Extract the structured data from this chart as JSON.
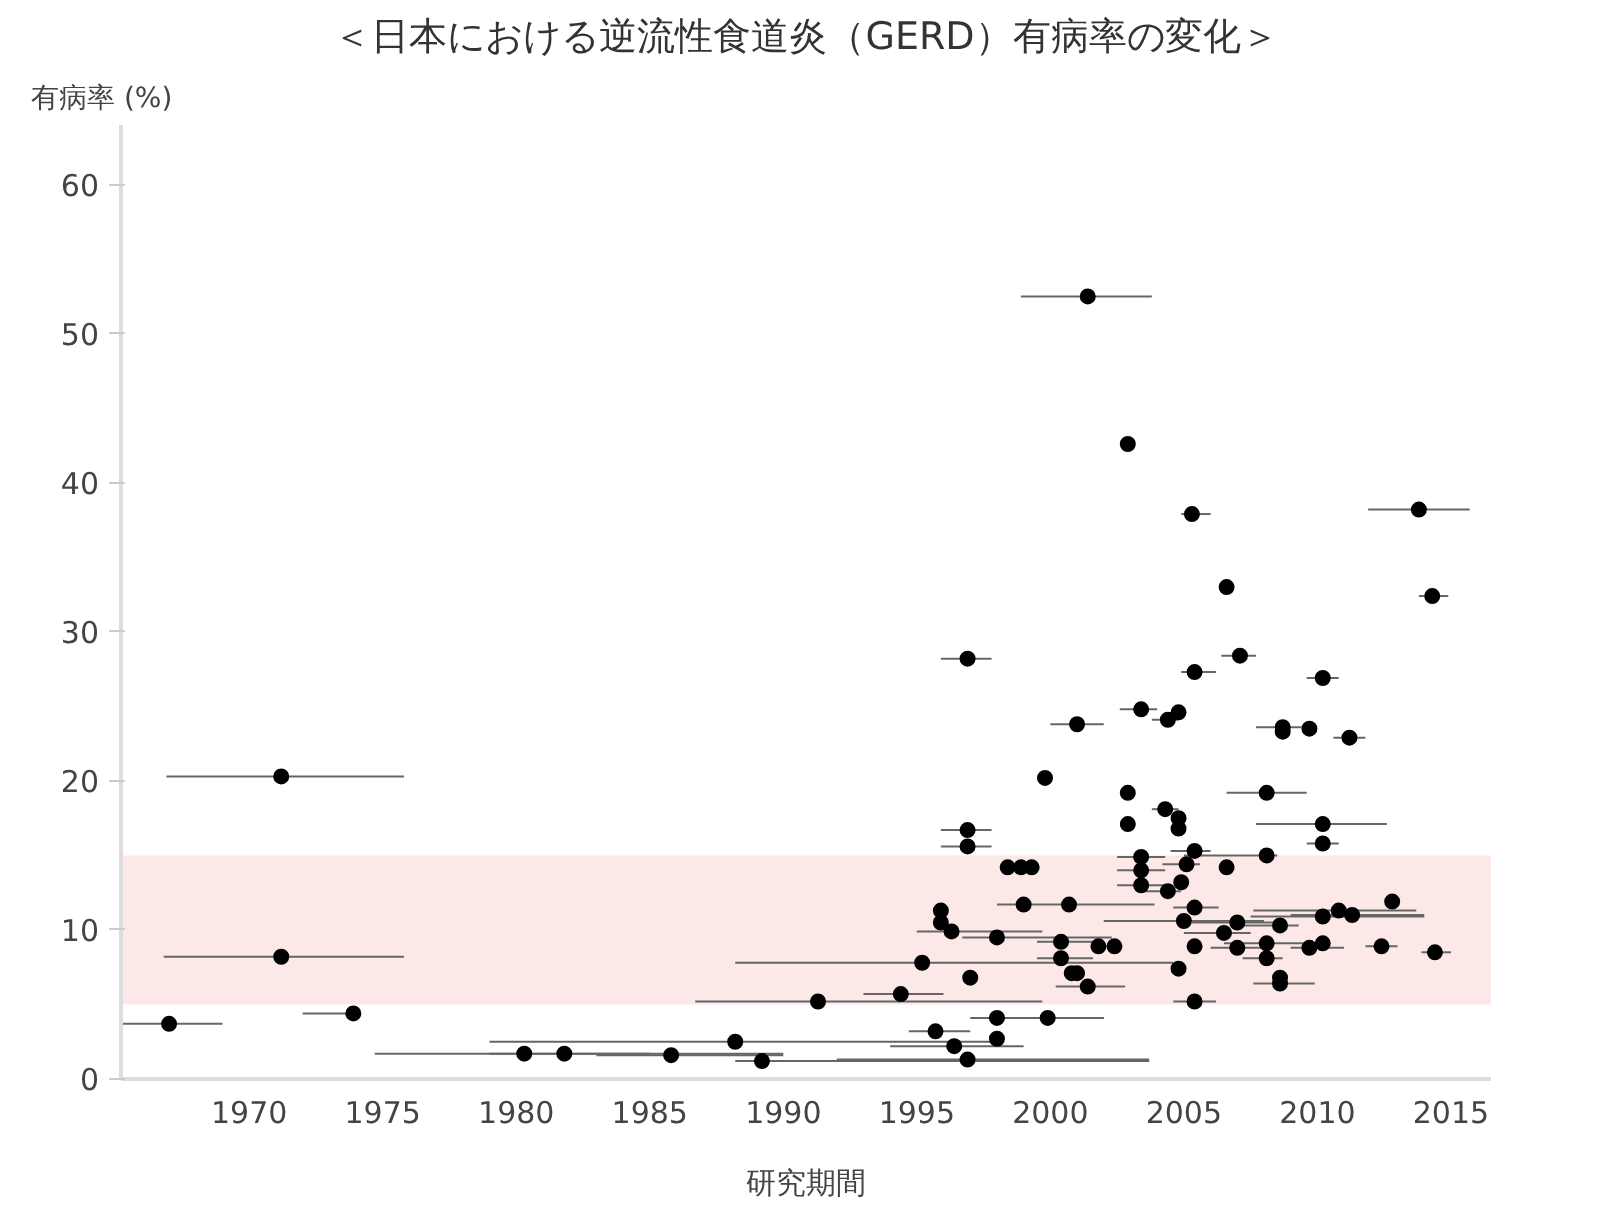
{
  "chart_data": {
    "type": "scatter",
    "title": "＜日本における逆流性食道炎（GERD）有病率の変化＞",
    "xlabel": "研究期間",
    "ylabel": "有病率 (%)",
    "xlim": [
      1965.2,
      2016.5
    ],
    "ylim": [
      0,
      64
    ],
    "xticks": [
      1970,
      1975,
      1980,
      1985,
      1990,
      1995,
      2000,
      2005,
      2010,
      2015
    ],
    "yticks": [
      0,
      10,
      20,
      30,
      40,
      50,
      60
    ],
    "grid": false,
    "marker": "circle",
    "bands": [
      {
        "axis": "y",
        "from": 5,
        "to": 15,
        "color": "#fde8e8"
      }
    ],
    "series": [
      {
        "color": "#000000",
        "x": [
          1967.0,
          1971.2,
          1971.2,
          1973.9,
          1980.3,
          1981.8,
          1985.8,
          1988.2,
          1989.2,
          1991.3,
          1994.4,
          1995.2,
          1995.9,
          1995.9,
          1996.3,
          1995.7,
          1996.4,
          1996.9,
          1996.9,
          1996.9,
          1996.9,
          1997.0,
          1998.0,
          1998.0,
          1998.0,
          1998.4,
          1998.9,
          1999.3,
          1999.0,
          2000.7,
          1999.8,
          1999.9,
          2000.4,
          2000.4,
          2000.8,
          2001.0,
          2001.4,
          2001.0,
          2001.4,
          2001.8,
          2002.4,
          2002.9,
          2002.9,
          2002.9,
          2003.4,
          2003.4,
          2003.4,
          2003.4,
          2004.4,
          2004.3,
          2004.8,
          2004.8,
          2004.8,
          2005.4,
          2005.1,
          2004.9,
          2004.4,
          2006.6,
          2005.4,
          2005.0,
          2005.4,
          2004.8,
          2005.4,
          2007.0,
          2006.5,
          2007.0,
          2005.3,
          2013.8,
          2006.6,
          2014.3,
          2007.1,
          2005.4,
          2010.2,
          2008.7,
          2008.7,
          2009.7,
          2011.2,
          2008.1,
          2010.2,
          2010.2,
          2008.1,
          2012.8,
          2010.8,
          2011.3,
          2010.2,
          2008.6,
          2008.1,
          2009.7,
          2010.2,
          2012.4,
          2014.4,
          2008.1,
          2008.6,
          2008.6
        ],
        "values": [
          3.7,
          20.3,
          8.2,
          4.4,
          1.7,
          1.7,
          1.6,
          2.5,
          1.2,
          5.2,
          5.7,
          7.8,
          11.3,
          10.5,
          9.9,
          3.2,
          2.2,
          1.3,
          28.2,
          16.7,
          15.6,
          6.8,
          9.5,
          4.1,
          2.7,
          14.2,
          14.2,
          14.2,
          11.7,
          11.7,
          20.2,
          4.1,
          9.2,
          8.1,
          7.1,
          7.1,
          6.2,
          23.8,
          52.5,
          8.9,
          8.9,
          42.6,
          19.2,
          17.1,
          24.8,
          14.9,
          14.0,
          13.0,
          24.1,
          18.1,
          24.6,
          17.5,
          16.8,
          15.3,
          14.4,
          13.2,
          12.6,
          14.2,
          11.5,
          10.6,
          8.9,
          7.4,
          5.2,
          10.5,
          9.8,
          8.8,
          37.9,
          38.2,
          33.0,
          32.4,
          28.4,
          27.3,
          26.9,
          23.6,
          23.3,
          23.5,
          22.9,
          19.2,
          17.1,
          15.8,
          15.0,
          11.9,
          11.3,
          11.0,
          10.9,
          10.3,
          9.1,
          8.8,
          9.1,
          8.9,
          8.5,
          8.1,
          6.8,
          6.4
        ],
        "xerrors": [
          [
            1965.2,
            1969.0
          ],
          [
            1966.9,
            1975.8
          ],
          [
            1966.8,
            1975.8
          ],
          [
            1972.0,
            1973.9
          ],
          [
            1974.7,
            1985.0
          ],
          [
            1979.0,
            1990.0
          ],
          [
            1983.0,
            1990.0
          ],
          [
            1979.0,
            1998.0
          ],
          [
            1988.2,
            2003.7
          ],
          [
            1986.7,
            1999.7
          ],
          [
            1993.0,
            1996.0
          ],
          [
            1988.2,
            2004.6
          ],
          null,
          null,
          [
            1995.0,
            1999.7
          ],
          [
            1994.7,
            1997.0
          ],
          [
            1994.0,
            1999.0
          ],
          [
            1992.0,
            2003.7
          ],
          [
            1995.9,
            1997.8
          ],
          [
            1995.9,
            1997.8
          ],
          [
            1995.9,
            1997.8
          ],
          null,
          [
            1996.7,
            2002.3
          ],
          [
            1997.0,
            2002.0
          ],
          null,
          null,
          null,
          null,
          [
            1998.0,
            2003.9
          ],
          null,
          null,
          [
            1999.9,
            2002.0
          ],
          [
            1999.5,
            2001.6
          ],
          [
            1999.5,
            2001.6
          ],
          null,
          null,
          [
            2000.2,
            2002.8
          ],
          [
            2000.0,
            2002.0
          ],
          [
            1998.9,
            2003.8
          ],
          null,
          null,
          null,
          null,
          null,
          [
            2002.6,
            2004.0
          ],
          [
            2002.5,
            2004.3
          ],
          [
            2002.5,
            2004.3
          ],
          [
            2002.5,
            2004.3
          ],
          [
            2003.8,
            2004.8
          ],
          [
            2003.8,
            2004.8
          ],
          null,
          null,
          null,
          [
            2004.5,
            2006.0
          ],
          [
            2004.2,
            2005.6
          ],
          null,
          [
            2003.5,
            2004.9
          ],
          null,
          [
            2004.6,
            2006.3
          ],
          [
            2002.0,
            2008.0
          ],
          null,
          null,
          [
            2004.6,
            2006.2
          ],
          [
            2005.3,
            2008.5
          ],
          [
            2005.0,
            2007.5
          ],
          [
            2006.0,
            2008.0
          ],
          [
            2004.9,
            2006.0
          ],
          [
            2011.9,
            2015.7
          ],
          null,
          [
            2013.8,
            2014.9
          ],
          [
            2006.4,
            2007.7
          ],
          [
            2004.9,
            2006.2
          ],
          [
            2009.6,
            2010.8
          ],
          [
            2007.7,
            2009.4
          ],
          null,
          null,
          [
            2010.6,
            2011.8
          ],
          [
            2006.6,
            2009.6
          ],
          [
            2007.7,
            2012.6
          ],
          [
            2009.6,
            2010.8
          ],
          [
            2005.0,
            2008.5
          ],
          null,
          [
            2007.6,
            2013.7
          ],
          [
            2009.0,
            2014.0
          ],
          [
            2007.5,
            2014.0
          ],
          [
            2007.0,
            2009.3
          ],
          [
            2006.5,
            2009.5
          ],
          [
            2009.0,
            2011.0
          ],
          null,
          [
            2011.8,
            2013.0
          ],
          [
            2013.9,
            2015.0
          ],
          [
            2007.2,
            2008.7
          ],
          null,
          [
            2007.6,
            2009.9
          ]
        ]
      }
    ]
  }
}
